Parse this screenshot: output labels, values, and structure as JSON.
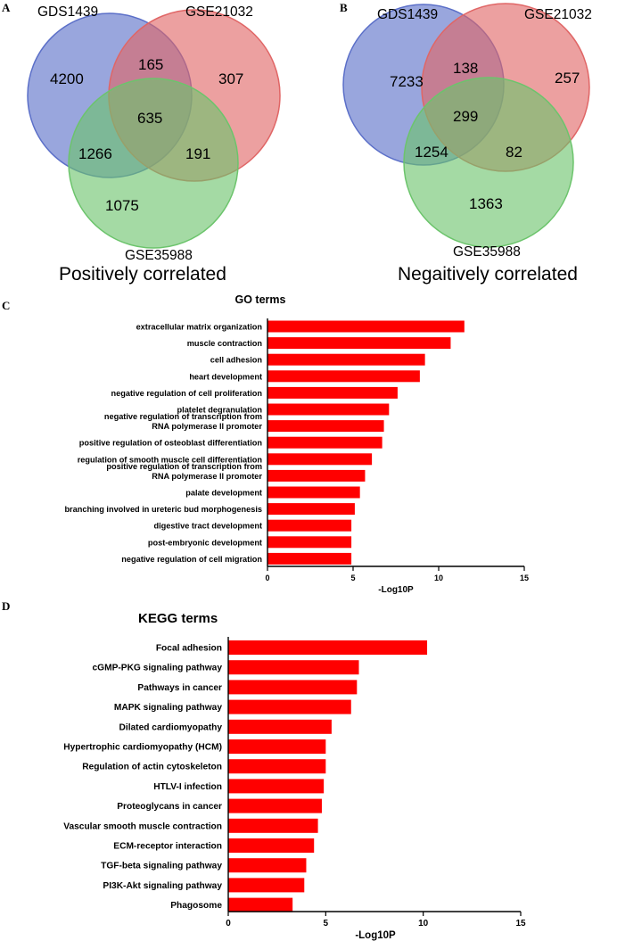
{
  "panels": {
    "A": "A",
    "B": "B",
    "C": "C",
    "D": "D"
  },
  "venns": [
    {
      "sets": [
        "GDS1439",
        "GSE21032",
        "GSE35988"
      ],
      "colors": [
        "#5b6fc8",
        "#e06666",
        "#6cc46c"
      ],
      "regions": {
        "a_only": "4200",
        "ab": "165",
        "b_only": "307",
        "abc": "635",
        "ac": "1266",
        "bc": "191",
        "c_only": "1075"
      },
      "caption": "Positively correlated"
    },
    {
      "sets": [
        "GDS1439",
        "GSE21032",
        "GSE35988"
      ],
      "colors": [
        "#5b6fc8",
        "#e06666",
        "#6cc46c"
      ],
      "regions": {
        "a_only": "7233",
        "ab": "138",
        "b_only": "257",
        "abc": "299",
        "ac": "1254",
        "bc": "82",
        "c_only": "1363"
      },
      "caption": "Negaitively correlated"
    }
  ],
  "chart_data": [
    {
      "type": "bar",
      "orientation": "horizontal",
      "title": "GO terms",
      "xlabel": "-Log10P",
      "xlim": [
        0,
        15
      ],
      "xticks": [
        "0",
        "5",
        "10",
        "15"
      ],
      "bar_color": "#ff0000",
      "categories": [
        [
          "extracellular matrix organization"
        ],
        [
          "muscle contraction"
        ],
        [
          "cell adhesion"
        ],
        [
          "heart development"
        ],
        [
          "negative regulation of cell proliferation"
        ],
        [
          "platelet degranulation"
        ],
        [
          "negative regulation of transcription from",
          "RNA polymerase II promoter"
        ],
        [
          "positive regulation of osteoblast differentiation"
        ],
        [
          "regulation of smooth muscle cell differentiation"
        ],
        [
          "positive regulation of transcription from",
          "RNA polymerase II promoter"
        ],
        [
          "palate development"
        ],
        [
          "branching involved in ureteric bud morphogenesis"
        ],
        [
          "digestive tract development"
        ],
        [
          "post-embryonic development"
        ],
        [
          "negative regulation of cell migration"
        ]
      ],
      "values": [
        11.5,
        10.7,
        9.2,
        8.9,
        7.6,
        7.1,
        6.8,
        6.7,
        6.1,
        5.7,
        5.4,
        5.1,
        4.9,
        4.9,
        4.9
      ]
    },
    {
      "type": "bar",
      "orientation": "horizontal",
      "title": "KEGG terms",
      "xlabel": "-Log10P",
      "xlim": [
        0,
        15
      ],
      "xticks": [
        "0",
        "5",
        "10",
        "15"
      ],
      "bar_color": "#ff0000",
      "categories": [
        [
          "Focal adhesion"
        ],
        [
          "cGMP-PKG signaling pathway"
        ],
        [
          "Pathways in cancer"
        ],
        [
          "MAPK signaling pathway"
        ],
        [
          "Dilated cardiomyopathy"
        ],
        [
          "Hypertrophic cardiomyopathy (HCM)"
        ],
        [
          "Regulation of actin cytoskeleton"
        ],
        [
          "HTLV-I infection"
        ],
        [
          "Proteoglycans in cancer"
        ],
        [
          "Vascular smooth muscle contraction"
        ],
        [
          "ECM-receptor interaction"
        ],
        [
          "TGF-beta signaling pathway"
        ],
        [
          "PI3K-Akt signaling pathway"
        ],
        [
          "Phagosome"
        ]
      ],
      "values": [
        10.2,
        6.7,
        6.6,
        6.3,
        5.3,
        5.0,
        5.0,
        4.9,
        4.8,
        4.6,
        4.4,
        4.0,
        3.9,
        3.3
      ]
    }
  ]
}
